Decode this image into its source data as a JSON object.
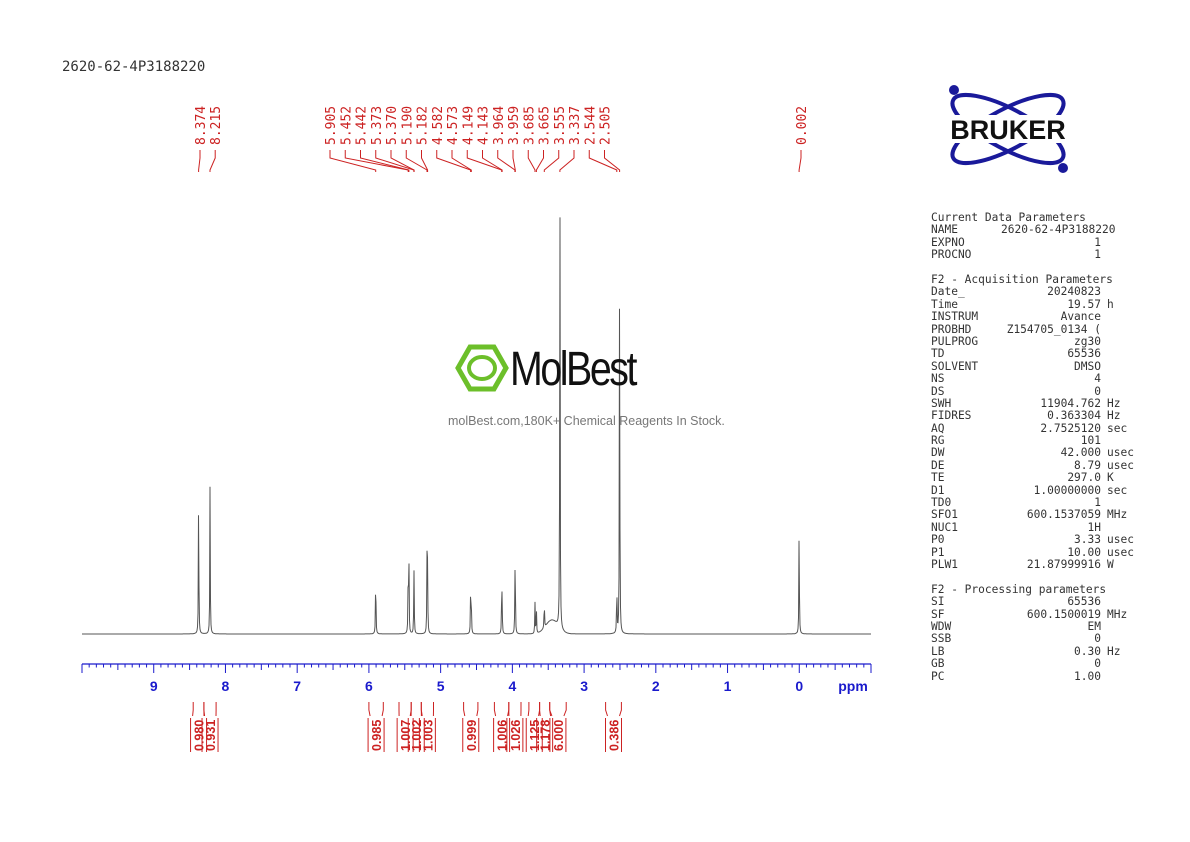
{
  "sample_name": "2620-62-4P3188220",
  "logo_text": "BRUKER",
  "watermark": {
    "brand": "MolBest",
    "tagline": "molBest.com,180K+ Chemical Reagents In Stock."
  },
  "colors": {
    "spectrum": "#555555",
    "peak_labels": "#cc2222",
    "axis": "#1a1acc",
    "logo": "#1a1a9a",
    "watermark_green": "#6cbf2a"
  },
  "parameters": {
    "current": {
      "heading": "Current Data Parameters",
      "rows": [
        {
          "key": "NAME",
          "value": "2620-62-4P3188220",
          "unit": ""
        },
        {
          "key": "EXPNO",
          "value": "1",
          "unit": ""
        },
        {
          "key": "PROCNO",
          "value": "1",
          "unit": ""
        }
      ]
    },
    "acquisition": {
      "heading": "F2 - Acquisition Parameters",
      "rows": [
        {
          "key": "Date_",
          "value": "20240823",
          "unit": ""
        },
        {
          "key": "Time",
          "value": "19.57",
          "unit": "h"
        },
        {
          "key": "INSTRUM",
          "value": "Avance",
          "unit": ""
        },
        {
          "key": "PROBHD",
          "value": "Z154705_0134 (",
          "unit": ""
        },
        {
          "key": "PULPROG",
          "value": "zg30",
          "unit": ""
        },
        {
          "key": "TD",
          "value": "65536",
          "unit": ""
        },
        {
          "key": "SOLVENT",
          "value": "DMSO",
          "unit": ""
        },
        {
          "key": "NS",
          "value": "4",
          "unit": ""
        },
        {
          "key": "DS",
          "value": "0",
          "unit": ""
        },
        {
          "key": "SWH",
          "value": "11904.762",
          "unit": "Hz"
        },
        {
          "key": "FIDRES",
          "value": "0.363304",
          "unit": "Hz"
        },
        {
          "key": "AQ",
          "value": "2.7525120",
          "unit": "sec"
        },
        {
          "key": "RG",
          "value": "101",
          "unit": ""
        },
        {
          "key": "DW",
          "value": "42.000",
          "unit": "usec"
        },
        {
          "key": "DE",
          "value": "8.79",
          "unit": "usec"
        },
        {
          "key": "TE",
          "value": "297.0",
          "unit": "K"
        },
        {
          "key": "D1",
          "value": "1.00000000",
          "unit": "sec"
        },
        {
          "key": "TD0",
          "value": "1",
          "unit": ""
        },
        {
          "key": "SFO1",
          "value": "600.1537059",
          "unit": "MHz"
        },
        {
          "key": "NUC1",
          "value": "1H",
          "unit": ""
        },
        {
          "key": "P0",
          "value": "3.33",
          "unit": "usec"
        },
        {
          "key": "P1",
          "value": "10.00",
          "unit": "usec"
        },
        {
          "key": "PLW1",
          "value": "21.87999916",
          "unit": "W"
        }
      ]
    },
    "processing": {
      "heading": "F2 - Processing parameters",
      "rows": [
        {
          "key": "SI",
          "value": "65536",
          "unit": ""
        },
        {
          "key": "SF",
          "value": "600.1500019",
          "unit": "MHz"
        },
        {
          "key": "WDW",
          "value": "EM",
          "unit": ""
        },
        {
          "key": "SSB",
          "value": "0",
          "unit": ""
        },
        {
          "key": "LB",
          "value": "0.30",
          "unit": "Hz"
        },
        {
          "key": "GB",
          "value": "0",
          "unit": ""
        },
        {
          "key": "PC",
          "value": "1.00",
          "unit": ""
        }
      ]
    }
  },
  "chart_data": {
    "type": "line",
    "xlabel": "ppm",
    "xlim": [
      10.0,
      -1.0
    ],
    "ylim": [
      0,
      1
    ],
    "x_ticks": [
      9,
      8,
      7,
      6,
      5,
      4,
      3,
      2,
      1,
      0
    ],
    "peak_labels": [
      "8.374",
      "8.215",
      "5.905",
      "5.452",
      "5.442",
      "5.373",
      "5.370",
      "5.190",
      "5.182",
      "4.582",
      "4.573",
      "4.149",
      "4.143",
      "3.964",
      "3.959",
      "3.685",
      "3.665",
      "3.555",
      "3.337",
      "2.544",
      "2.505",
      "0.002"
    ],
    "peaks": [
      {
        "x": 8.374,
        "y": 0.33
      },
      {
        "x": 8.215,
        "y": 0.33
      },
      {
        "x": 5.905,
        "y": 0.155
      },
      {
        "x": 5.452,
        "y": 0.16
      },
      {
        "x": 5.442,
        "y": 0.15
      },
      {
        "x": 5.373,
        "y": 0.085
      },
      {
        "x": 5.37,
        "y": 0.08
      },
      {
        "x": 5.19,
        "y": 0.16
      },
      {
        "x": 5.182,
        "y": 0.15
      },
      {
        "x": 4.582,
        "y": 0.09
      },
      {
        "x": 4.573,
        "y": 0.085
      },
      {
        "x": 4.149,
        "y": 0.08
      },
      {
        "x": 4.143,
        "y": 0.075
      },
      {
        "x": 3.964,
        "y": 0.105
      },
      {
        "x": 3.959,
        "y": 0.1
      },
      {
        "x": 3.685,
        "y": 0.07
      },
      {
        "x": 3.665,
        "y": 0.055
      },
      {
        "x": 3.555,
        "y": 0.065
      },
      {
        "x": 3.337,
        "y": 1.0
      },
      {
        "x": 2.544,
        "y": 0.12
      },
      {
        "x": 2.505,
        "y": 0.82
      },
      {
        "x": 0.002,
        "y": 0.26
      }
    ],
    "integrals": [
      {
        "from": 8.45,
        "to": 8.3,
        "value": "0.980"
      },
      {
        "from": 8.3,
        "to": 8.13,
        "value": "0.931"
      },
      {
        "from": 6.0,
        "to": 5.8,
        "value": "0.985"
      },
      {
        "from": 5.58,
        "to": 5.41,
        "value": "1.007"
      },
      {
        "from": 5.41,
        "to": 5.27,
        "value": "1.002"
      },
      {
        "from": 5.27,
        "to": 5.1,
        "value": "1.003"
      },
      {
        "from": 4.68,
        "to": 4.48,
        "value": "0.999"
      },
      {
        "from": 4.25,
        "to": 4.05,
        "value": "1.006"
      },
      {
        "from": 4.05,
        "to": 3.88,
        "value": "1.026"
      },
      {
        "from": 3.77,
        "to": 3.62,
        "value": "1.125"
      },
      {
        "from": 3.62,
        "to": 3.48,
        "value": "1.178"
      },
      {
        "from": 3.48,
        "to": 3.25,
        "value": "6.000"
      },
      {
        "from": 2.7,
        "to": 2.48,
        "value": "0.386"
      }
    ]
  }
}
